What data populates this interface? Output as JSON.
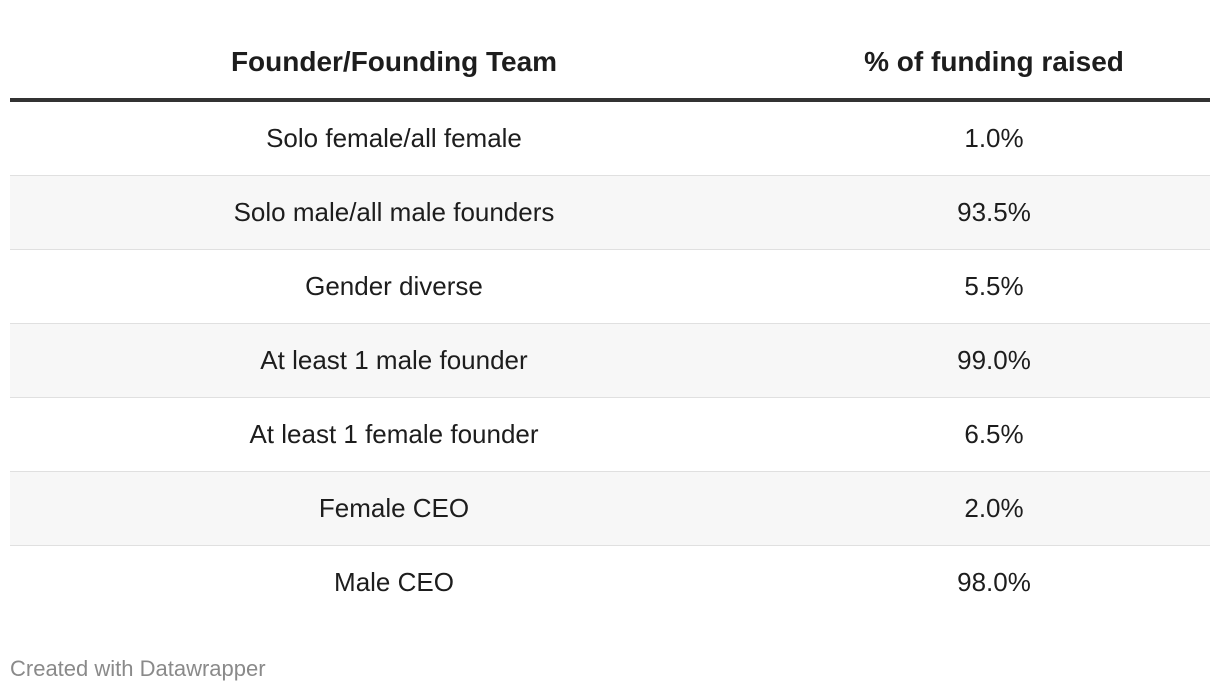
{
  "chart_data": {
    "type": "table",
    "columns": [
      "Founder/Founding Team",
      "% of funding raised"
    ],
    "rows": [
      {
        "team": "Solo female/all female",
        "pct": "1.0%"
      },
      {
        "team": "Solo male/all male founders",
        "pct": "93.5%"
      },
      {
        "team": "Gender diverse",
        "pct": "5.5%"
      },
      {
        "team": "At least 1 male founder",
        "pct": "99.0%"
      },
      {
        "team": "At least 1 female founder",
        "pct": "6.5%"
      },
      {
        "team": "Female CEO",
        "pct": "2.0%"
      },
      {
        "team": "Male CEO",
        "pct": "98.0%"
      }
    ]
  },
  "footer": {
    "credit": "Created with Datawrapper"
  },
  "colors": {
    "text": "#1d1d1d",
    "header_rule": "#333333",
    "row_divider": "#e0e0e0",
    "stripe": "#f7f7f7",
    "credit": "#8a8a8a"
  }
}
